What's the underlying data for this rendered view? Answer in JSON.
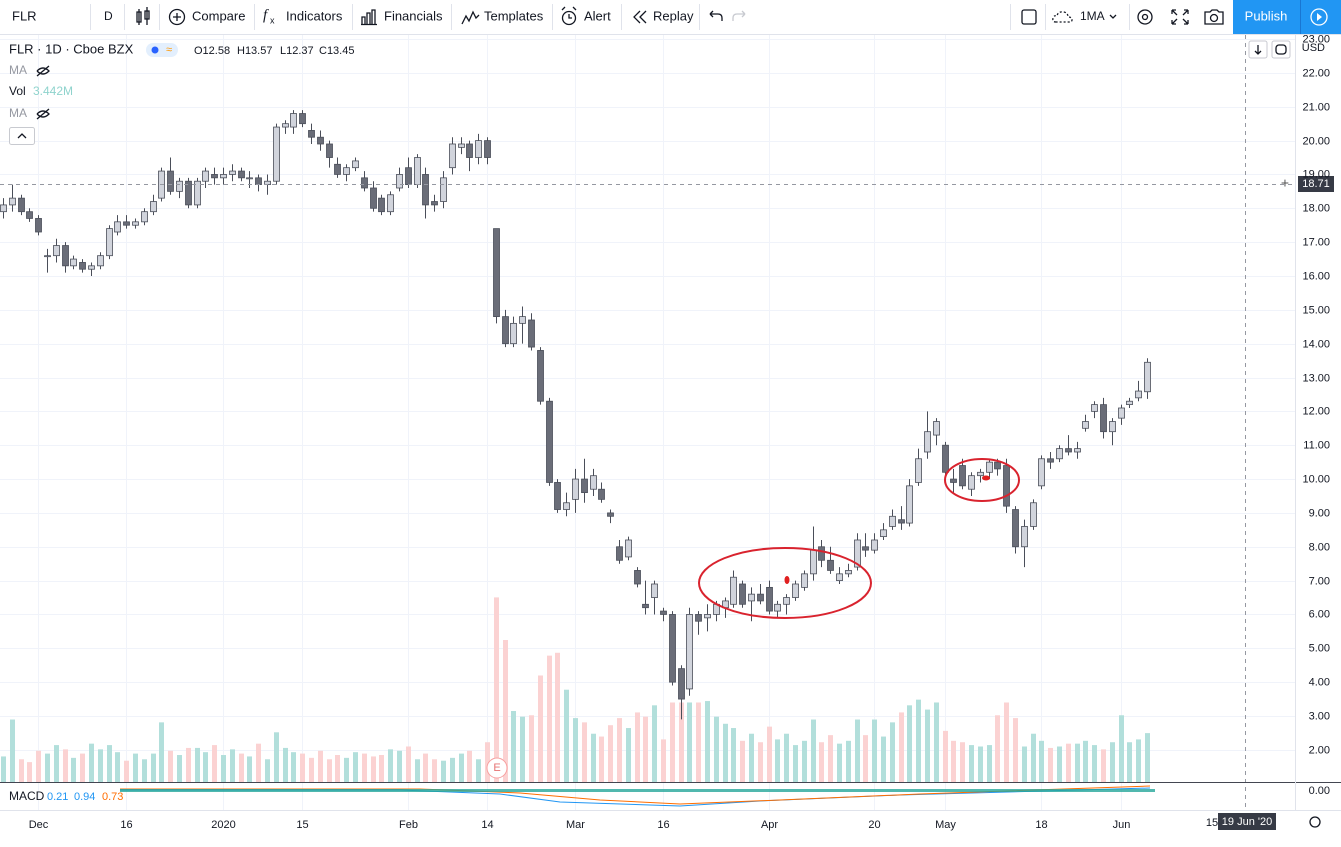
{
  "toolbar": {
    "symbol": "FLR",
    "interval": "D",
    "buttons": [
      "Compare",
      "Indicators",
      "Financials",
      "Templates",
      "Alert",
      "Replay"
    ],
    "ma_button": "1MA",
    "publish": "Publish"
  },
  "legend": {
    "symbol_line": "FLR · 1D · Cboe BZX",
    "ohlc": [
      "O12.58",
      "H13.57",
      "L12.37",
      "C13.45"
    ],
    "ma1": "MA",
    "vol": "Vol",
    "vol_value": "3.442M",
    "ma2": "MA"
  },
  "price_axis": {
    "currency": "USD",
    "crosshair_price": "18.71"
  },
  "time_axis": {
    "future_label": "15",
    "crosshair_date": "19 Jun '20"
  },
  "macd": {
    "label": "MACD",
    "values": [
      "0.21",
      "0.94",
      "0.73"
    ],
    "zero_label": "0.00"
  },
  "earnings_marker": "E",
  "chart_data": {
    "type": "candlestick",
    "categories": [
      null,
      null,
      null,
      null,
      "Dec",
      null,
      null,
      null,
      null,
      null,
      null,
      null,
      null,
      null,
      "16",
      null,
      null,
      null,
      null,
      null,
      null,
      null,
      null,
      null,
      null,
      "2020",
      null,
      null,
      null,
      null,
      null,
      null,
      null,
      null,
      "15",
      null,
      null,
      null,
      null,
      null,
      null,
      null,
      null,
      null,
      null,
      null,
      "Feb",
      null,
      null,
      null,
      null,
      null,
      null,
      null,
      null,
      "14",
      null,
      null,
      null,
      null,
      null,
      null,
      null,
      null,
      null,
      "Mar",
      null,
      null,
      null,
      null,
      null,
      null,
      null,
      null,
      null,
      "16",
      null,
      null,
      null,
      null,
      null,
      null,
      null,
      null,
      null,
      null,
      null,
      "Apr",
      null,
      null,
      null,
      null,
      null,
      null,
      null,
      null,
      null,
      null,
      null,
      "20",
      null,
      null,
      null,
      null,
      null,
      null,
      null,
      "May",
      null,
      null,
      null,
      null,
      null,
      null,
      null,
      null,
      null,
      null,
      "18",
      null,
      null,
      null,
      null,
      null,
      null,
      null,
      null,
      "Jun",
      null,
      null,
      null
    ],
    "ohlc": [
      [
        17.9,
        18.3,
        17.7,
        18.1
      ],
      [
        18.1,
        18.7,
        17.9,
        18.3
      ],
      [
        18.3,
        18.4,
        17.8,
        17.9
      ],
      [
        17.9,
        18.0,
        17.6,
        17.7
      ],
      [
        17.7,
        17.8,
        17.2,
        17.3
      ],
      [
        16.6,
        16.8,
        16.1,
        16.6
      ],
      [
        16.6,
        17.1,
        16.4,
        16.9
      ],
      [
        16.9,
        17.0,
        16.1,
        16.3
      ],
      [
        16.3,
        16.6,
        16.2,
        16.5
      ],
      [
        16.4,
        16.5,
        16.1,
        16.2
      ],
      [
        16.2,
        16.4,
        16.0,
        16.3
      ],
      [
        16.3,
        16.7,
        16.2,
        16.6
      ],
      [
        16.6,
        17.5,
        16.5,
        17.4
      ],
      [
        17.3,
        17.8,
        17.2,
        17.6
      ],
      [
        17.6,
        17.8,
        17.4,
        17.5
      ],
      [
        17.5,
        17.7,
        17.4,
        17.6
      ],
      [
        17.6,
        18.0,
        17.5,
        17.9
      ],
      [
        17.9,
        18.4,
        17.8,
        18.2
      ],
      [
        18.3,
        19.2,
        18.2,
        19.1
      ],
      [
        19.1,
        19.5,
        18.4,
        18.5
      ],
      [
        18.5,
        18.9,
        18.3,
        18.8
      ],
      [
        18.8,
        18.9,
        18.0,
        18.1
      ],
      [
        18.1,
        18.9,
        18.0,
        18.8
      ],
      [
        18.8,
        19.2,
        18.6,
        19.1
      ],
      [
        19.0,
        19.2,
        18.7,
        18.9
      ],
      [
        18.9,
        19.2,
        18.7,
        19.0
      ],
      [
        19.0,
        19.3,
        18.8,
        19.1
      ],
      [
        19.1,
        19.2,
        18.8,
        18.9
      ],
      [
        18.9,
        19.1,
        18.6,
        18.9
      ],
      [
        18.9,
        19.0,
        18.5,
        18.7
      ],
      [
        18.7,
        19.0,
        18.4,
        18.8
      ],
      [
        18.8,
        20.5,
        18.7,
        20.4
      ],
      [
        20.4,
        20.6,
        20.2,
        20.5
      ],
      [
        20.4,
        20.9,
        20.2,
        20.8
      ],
      [
        20.8,
        20.9,
        20.4,
        20.5
      ],
      [
        20.3,
        20.5,
        19.9,
        20.1
      ],
      [
        20.1,
        20.3,
        19.7,
        19.9
      ],
      [
        19.9,
        20.0,
        19.2,
        19.5
      ],
      [
        19.3,
        19.5,
        18.9,
        19.0
      ],
      [
        19.0,
        19.3,
        18.8,
        19.2
      ],
      [
        19.2,
        19.5,
        19.1,
        19.4
      ],
      [
        18.9,
        19.1,
        18.5,
        18.6
      ],
      [
        18.6,
        18.8,
        17.9,
        18.0
      ],
      [
        18.3,
        18.4,
        17.8,
        17.9
      ],
      [
        17.9,
        18.5,
        17.8,
        18.4
      ],
      [
        18.6,
        19.2,
        18.5,
        19.0
      ],
      [
        19.2,
        19.5,
        18.6,
        18.7
      ],
      [
        18.7,
        19.6,
        18.6,
        19.5
      ],
      [
        19.0,
        19.2,
        17.7,
        18.1
      ],
      [
        18.2,
        18.4,
        17.9,
        18.1
      ],
      [
        18.2,
        19.1,
        18.0,
        18.9
      ],
      [
        19.2,
        20.1,
        19.0,
        19.9
      ],
      [
        19.8,
        20.1,
        19.6,
        19.9
      ],
      [
        19.9,
        20.0,
        19.1,
        19.5
      ],
      [
        19.5,
        20.2,
        19.3,
        20.0
      ],
      [
        20.0,
        20.1,
        19.3,
        19.5
      ],
      [
        17.4,
        17.4,
        14.6,
        14.8
      ],
      [
        14.8,
        15.0,
        13.9,
        14.0
      ],
      [
        14.0,
        14.8,
        13.9,
        14.6
      ],
      [
        14.6,
        15.1,
        14.0,
        14.8
      ],
      [
        14.7,
        14.9,
        13.8,
        13.9
      ],
      [
        13.8,
        13.9,
        12.2,
        12.3
      ],
      [
        12.3,
        12.4,
        9.8,
        9.9
      ],
      [
        9.9,
        10.0,
        9.0,
        9.1
      ],
      [
        9.1,
        9.6,
        8.9,
        9.3
      ],
      [
        9.4,
        10.3,
        9.0,
        10.0
      ],
      [
        10.0,
        10.6,
        9.3,
        9.6
      ],
      [
        9.7,
        10.3,
        9.5,
        10.1
      ],
      [
        9.7,
        9.9,
        9.3,
        9.4
      ],
      [
        9.0,
        9.1,
        8.7,
        8.9
      ],
      [
        8.0,
        8.2,
        7.5,
        7.6
      ],
      [
        7.7,
        8.3,
        7.6,
        8.2
      ],
      [
        7.3,
        7.4,
        6.8,
        6.9
      ],
      [
        6.3,
        7.0,
        6.0,
        6.2
      ],
      [
        6.5,
        7.0,
        6.0,
        6.9
      ],
      [
        6.1,
        6.2,
        5.8,
        6.0
      ],
      [
        6.0,
        6.1,
        3.9,
        4.0
      ],
      [
        4.4,
        4.5,
        2.9,
        3.5
      ],
      [
        3.8,
        6.2,
        3.6,
        6.0
      ],
      [
        6.0,
        6.1,
        5.4,
        5.8
      ],
      [
        5.9,
        6.3,
        5.5,
        6.0
      ],
      [
        6.0,
        6.4,
        5.8,
        6.3
      ],
      [
        6.2,
        6.5,
        5.9,
        6.4
      ],
      [
        6.3,
        7.3,
        6.2,
        7.1
      ],
      [
        6.9,
        7.0,
        6.2,
        6.3
      ],
      [
        6.4,
        6.8,
        5.8,
        6.6
      ],
      [
        6.6,
        6.9,
        6.3,
        6.4
      ],
      [
        6.8,
        7.0,
        6.0,
        6.1
      ],
      [
        6.1,
        6.4,
        5.9,
        6.3
      ],
      [
        6.3,
        6.6,
        6.0,
        6.5
      ],
      [
        6.5,
        7.0,
        6.4,
        6.9
      ],
      [
        6.8,
        7.3,
        6.7,
        7.2
      ],
      [
        7.2,
        8.6,
        7.0,
        7.9
      ],
      [
        8.0,
        8.2,
        7.4,
        7.6
      ],
      [
        7.6,
        8.0,
        7.2,
        7.3
      ],
      [
        7.0,
        7.4,
        6.9,
        7.2
      ],
      [
        7.2,
        7.5,
        7.1,
        7.3
      ],
      [
        7.4,
        8.4,
        7.3,
        8.2
      ],
      [
        8.0,
        8.4,
        7.7,
        7.9
      ],
      [
        7.9,
        8.4,
        7.8,
        8.2
      ],
      [
        8.3,
        8.7,
        8.2,
        8.5
      ],
      [
        8.6,
        9.1,
        8.5,
        8.9
      ],
      [
        8.8,
        9.2,
        8.5,
        8.7
      ],
      [
        8.7,
        10.0,
        8.6,
        9.8
      ],
      [
        9.9,
        10.9,
        9.8,
        10.6
      ],
      [
        10.8,
        12.0,
        10.6,
        11.4
      ],
      [
        11.3,
        11.8,
        11.0,
        11.7
      ],
      [
        11.0,
        11.1,
        9.9,
        10.2
      ],
      [
        10.0,
        10.3,
        9.6,
        9.9
      ],
      [
        10.4,
        10.6,
        9.7,
        9.8
      ],
      [
        9.7,
        10.2,
        9.5,
        10.1
      ],
      [
        10.1,
        10.3,
        9.9,
        10.2
      ],
      [
        10.2,
        10.6,
        10.0,
        10.5
      ],
      [
        10.5,
        10.6,
        10.1,
        10.3
      ],
      [
        10.4,
        10.6,
        9.0,
        9.2
      ],
      [
        9.1,
        9.2,
        7.8,
        8.0
      ],
      [
        8.0,
        8.8,
        7.4,
        8.6
      ],
      [
        8.6,
        9.4,
        8.5,
        9.3
      ],
      [
        9.8,
        10.7,
        9.7,
        10.6
      ],
      [
        10.6,
        10.8,
        10.3,
        10.5
      ],
      [
        10.6,
        11.0,
        10.5,
        10.9
      ],
      [
        10.9,
        11.3,
        10.7,
        10.8
      ],
      [
        10.8,
        11.1,
        10.6,
        10.9
      ],
      [
        11.5,
        11.9,
        11.4,
        11.7
      ],
      [
        12.0,
        12.3,
        11.8,
        12.2
      ],
      [
        12.2,
        12.4,
        11.2,
        11.4
      ],
      [
        11.4,
        11.8,
        11.0,
        11.7
      ],
      [
        11.8,
        12.2,
        11.6,
        12.1
      ],
      [
        12.2,
        12.4,
        12.1,
        12.3
      ],
      [
        12.4,
        12.9,
        12.3,
        12.6
      ],
      [
        12.58,
        13.57,
        12.37,
        13.45
      ]
    ],
    "volume": [
      1.8,
      4.4,
      1.6,
      1.4,
      2.2,
      2.0,
      2.6,
      2.3,
      1.7,
      2.0,
      2.7,
      2.3,
      2.6,
      2.1,
      1.5,
      2.0,
      1.6,
      2.0,
      4.2,
      2.2,
      1.9,
      2.4,
      2.4,
      2.1,
      2.6,
      1.9,
      2.3,
      2.0,
      1.8,
      2.7,
      1.6,
      3.5,
      2.4,
      2.1,
      2.0,
      1.7,
      2.2,
      1.6,
      1.9,
      1.7,
      2.1,
      2.0,
      1.8,
      1.9,
      2.3,
      2.2,
      2.5,
      1.6,
      2.0,
      1.6,
      1.5,
      1.7,
      2.0,
      2.2,
      1.6,
      2.8,
      13.0,
      10.0,
      5.0,
      4.6,
      4.7,
      7.5,
      8.9,
      9.1,
      6.5,
      4.5,
      4.2,
      3.4,
      3.2,
      4.0,
      4.5,
      3.8,
      4.9,
      4.6,
      5.4,
      3.0,
      5.6,
      5.6,
      5.6,
      5.6,
      5.7,
      4.6,
      4.1,
      3.8,
      2.9,
      3.4,
      2.8,
      3.9,
      3.0,
      3.4,
      2.6,
      2.9,
      4.4,
      2.8,
      3.3,
      2.7,
      2.9,
      4.4,
      3.3,
      4.4,
      3.2,
      4.2,
      4.9,
      5.4,
      5.8,
      5.1,
      5.6,
      3.6,
      2.9,
      2.8,
      2.6,
      2.5,
      2.6,
      4.7,
      5.6,
      4.5,
      2.5,
      3.4,
      2.9,
      2.4,
      2.5,
      2.7,
      2.7,
      2.9,
      2.6,
      2.3,
      2.8,
      4.7,
      2.8,
      3.0,
      3.442
    ],
    "ylim": [
      1.05,
      23.12
    ],
    "yticks": [
      {
        "value": 2,
        "label": "2.00"
      },
      {
        "value": 3,
        "label": "3.00"
      },
      {
        "value": 4,
        "label": "4.00"
      },
      {
        "value": 5,
        "label": "5.00"
      },
      {
        "value": 6,
        "label": "6.00"
      },
      {
        "value": 7,
        "label": "7.00"
      },
      {
        "value": 8,
        "label": "8.00"
      },
      {
        "value": 9,
        "label": "9.00"
      },
      {
        "value": 10,
        "label": "10.00"
      },
      {
        "value": 11,
        "label": "11.00"
      },
      {
        "value": 12,
        "label": "12.00"
      },
      {
        "value": 13,
        "label": "13.00"
      },
      {
        "value": 14,
        "label": "14.00"
      },
      {
        "value": 15,
        "label": "15.00"
      },
      {
        "value": 16,
        "label": "16.00"
      },
      {
        "value": 17,
        "label": "17.00"
      },
      {
        "value": 18,
        "label": "18.00"
      },
      {
        "value": 19,
        "label": "19.00"
      },
      {
        "value": 20,
        "label": "20.00"
      },
      {
        "value": 21,
        "label": "21.00"
      },
      {
        "value": 22,
        "label": "22.00"
      },
      {
        "value": 23,
        "label": "23.00"
      }
    ],
    "up_color": "#d1d4dc",
    "down_color": "#6a6d78",
    "wick_color": "#4a4e59",
    "volume_up_color": "#b2dfdb",
    "volume_down_color": "#fbd2d2",
    "grid": true
  }
}
